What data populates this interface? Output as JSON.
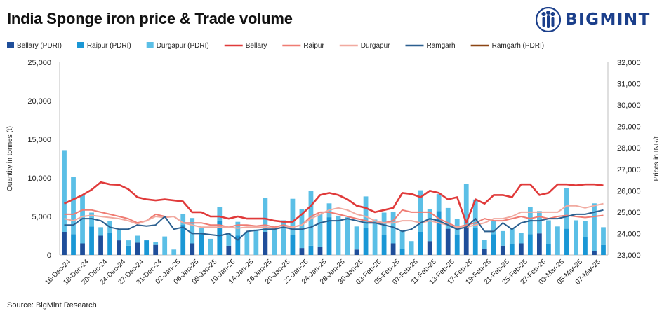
{
  "title": "India Sponge iron price & Trade volume",
  "brand": "BIGMINT",
  "source": "Source: BigMint Research",
  "chart_data": {
    "type": "bar+line",
    "y_left_label": "Quantity in tonnes (t)",
    "y_right_label": "Prices in INR/t",
    "ylim_left": [
      0,
      25000
    ],
    "ylim_right": [
      23000,
      32000
    ],
    "left_ticks": [
      "0",
      "5,000",
      "10,000",
      "15,000",
      "20,000",
      "25,000"
    ],
    "right_ticks": [
      "23,000",
      "24,000",
      "25,000",
      "26,000",
      "27,000",
      "28,000",
      "29,000",
      "30,000",
      "31,000",
      "32,000"
    ],
    "left_tick_values": [
      0,
      5000,
      10000,
      15000,
      20000,
      25000
    ],
    "right_tick_values": [
      23000,
      24000,
      25000,
      26000,
      27000,
      28000,
      29000,
      30000,
      31000,
      32000
    ],
    "x_labels": [
      "16-Dec-24",
      "18-Dec-24",
      "20-Dec-24",
      "24-Dec-24",
      "27-Dec-24",
      "31-Dec-24",
      "02-Jan-25",
      "06-Jan-25",
      "08-Jan-25",
      "10-Jan-25",
      "14-Jan-25",
      "16-Jan-25",
      "20-Jan-25",
      "22-Jan-25",
      "24-Jan-25",
      "28-Jan-25",
      "30-Jan-25",
      "03-Feb-25",
      "05-Feb-25",
      "07-Feb-25",
      "11-Feb-25",
      "13-Feb-25",
      "17-Feb-25",
      "19-Feb-25",
      "21-Feb-25",
      "25-Feb-25",
      "27-Feb-25",
      "03-Mar-25",
      "05-Mar-25",
      "07-Mar-25"
    ],
    "n_points": 60,
    "bar_series": [
      {
        "name": "Bellary (PDRI)",
        "color": "#1f4e9a",
        "values": [
          3000,
          0,
          1500,
          0,
          2500,
          0,
          1900,
          0,
          1600,
          0,
          1300,
          0,
          0,
          0,
          1500,
          0,
          0,
          0,
          1200,
          0,
          0,
          0,
          3000,
          0,
          0,
          0,
          900,
          0,
          1000,
          0,
          0,
          0,
          700,
          0,
          0,
          0,
          1500,
          0,
          0,
          0,
          1800,
          0,
          3400,
          0,
          3800,
          0,
          800,
          0,
          1200,
          0,
          1500,
          0,
          2800,
          0,
          0,
          0,
          0,
          0,
          500,
          0
        ]
      },
      {
        "name": "Raipur (PDRI)",
        "color": "#1a97d5",
        "values": [
          0,
          2700,
          0,
          3700,
          0,
          2900,
          0,
          1200,
          0,
          1900,
          0,
          0,
          0,
          3900,
          0,
          2700,
          0,
          4400,
          0,
          2500,
          0,
          0,
          0,
          0,
          0,
          2600,
          0,
          1200,
          0,
          4900,
          0,
          0,
          0,
          3500,
          0,
          2600,
          0,
          800,
          0,
          3000,
          0,
          5700,
          0,
          2600,
          0,
          3500,
          0,
          2700,
          0,
          1400,
          0,
          2700,
          0,
          1400,
          0,
          3400,
          0,
          2300,
          0,
          1300
        ]
      },
      {
        "name": "Durgapur (PDRI)",
        "color": "#5bbfe6",
        "values": [
          10600,
          7400,
          6300,
          1800,
          1100,
          1500,
          1300,
          700,
          900,
          0,
          400,
          2400,
          700,
          1400,
          3300,
          800,
          2100,
          1800,
          1600,
          1800,
          3000,
          3300,
          4400,
          3700,
          4500,
          4700,
          5100,
          7100,
          4300,
          1800,
          5100,
          4900,
          3000,
          4100,
          4600,
          2900,
          4100,
          2400,
          1800,
          5400,
          4200,
          2200,
          2700,
          2100,
          5400,
          3700,
          1200,
          1700,
          1900,
          2100,
          1400,
          3500,
          2900,
          3100,
          3700,
          5300,
          4500,
          2100,
          6200,
          2300
        ]
      }
    ],
    "line_series": [
      {
        "name": "Bellary",
        "color": "#e03a3a",
        "values": [
          25400,
          25600,
          25800,
          26050,
          26400,
          26300,
          26280,
          26080,
          25700,
          25600,
          25550,
          25600,
          25550,
          25500,
          25000,
          25000,
          24800,
          24800,
          24700,
          24800,
          24700,
          24700,
          24700,
          24600,
          24550,
          24550,
          24900,
          25300,
          25800,
          25900,
          25800,
          25600,
          25300,
          25200,
          25000,
          25100,
          25200,
          25900,
          25850,
          25700,
          26000,
          25900,
          25600,
          25700,
          24500,
          25600,
          25400,
          25800,
          25800,
          25700,
          26300,
          26300,
          25800,
          25900,
          26300,
          26300,
          26250,
          26300,
          26300,
          26250
        ]
      },
      {
        "name": "Raipur",
        "color": "#ef7c73",
        "values": [
          24900,
          24900,
          25100,
          25100,
          25000,
          24900,
          24800,
          24700,
          24500,
          24600,
          24900,
          24800,
          24800,
          24500,
          24500,
          24500,
          24400,
          24400,
          24300,
          24400,
          24400,
          24350,
          24400,
          24300,
          24400,
          24300,
          24400,
          24800,
          25000,
          25000,
          24900,
          24800,
          24700,
          24600,
          24500,
          24500,
          24600,
          25100,
          25000,
          25000,
          25000,
          24700,
          24500,
          24300,
          24400,
          24500,
          24700,
          24600,
          24600,
          24700,
          24800,
          24700,
          24800,
          24700,
          24800,
          24850,
          24800,
          24750,
          24800,
          24850
        ]
      },
      {
        "name": "Durgapur",
        "color": "#f1aaa0",
        "values": [
          24700,
          24600,
          24800,
          24850,
          24800,
          24750,
          24700,
          24600,
          24450,
          24600,
          24800,
          24750,
          24800,
          24500,
          24400,
          24300,
          24300,
          24300,
          24300,
          24250,
          24300,
          24300,
          24300,
          24250,
          24300,
          24300,
          24400,
          24700,
          24900,
          25100,
          25200,
          25100,
          24900,
          24800,
          24600,
          24500,
          24500,
          24600,
          24600,
          24500,
          24600,
          24500,
          24400,
          24300,
          24300,
          24400,
          24500,
          24700,
          24700,
          24800,
          25000,
          25000,
          25000,
          25000,
          25000,
          25300,
          25300,
          25200,
          25300,
          25400
        ]
      },
      {
        "name": "Ramgarh",
        "color": "#2b5f8f",
        "values": [
          24400,
          24400,
          24700,
          24700,
          24600,
          24300,
          24200,
          24200,
          24400,
          24350,
          24400,
          24800,
          24200,
          24300,
          24000,
          24000,
          23950,
          23900,
          24000,
          23700,
          24100,
          24150,
          24200,
          24200,
          24300,
          24200,
          24200,
          24300,
          24500,
          24600,
          24600,
          24700,
          24600,
          24500,
          24500,
          24400,
          24300,
          24100,
          24200,
          24500,
          24700,
          24600,
          24400,
          24200,
          24300,
          24700,
          24100,
          24100,
          24500,
          24200,
          24500,
          24600,
          24600,
          24700,
          24700,
          24800,
          24900,
          24900,
          25000,
          25100
        ]
      },
      {
        "name": "Ramgarh (PDRI)",
        "color": "#8b4513",
        "values": []
      }
    ]
  }
}
